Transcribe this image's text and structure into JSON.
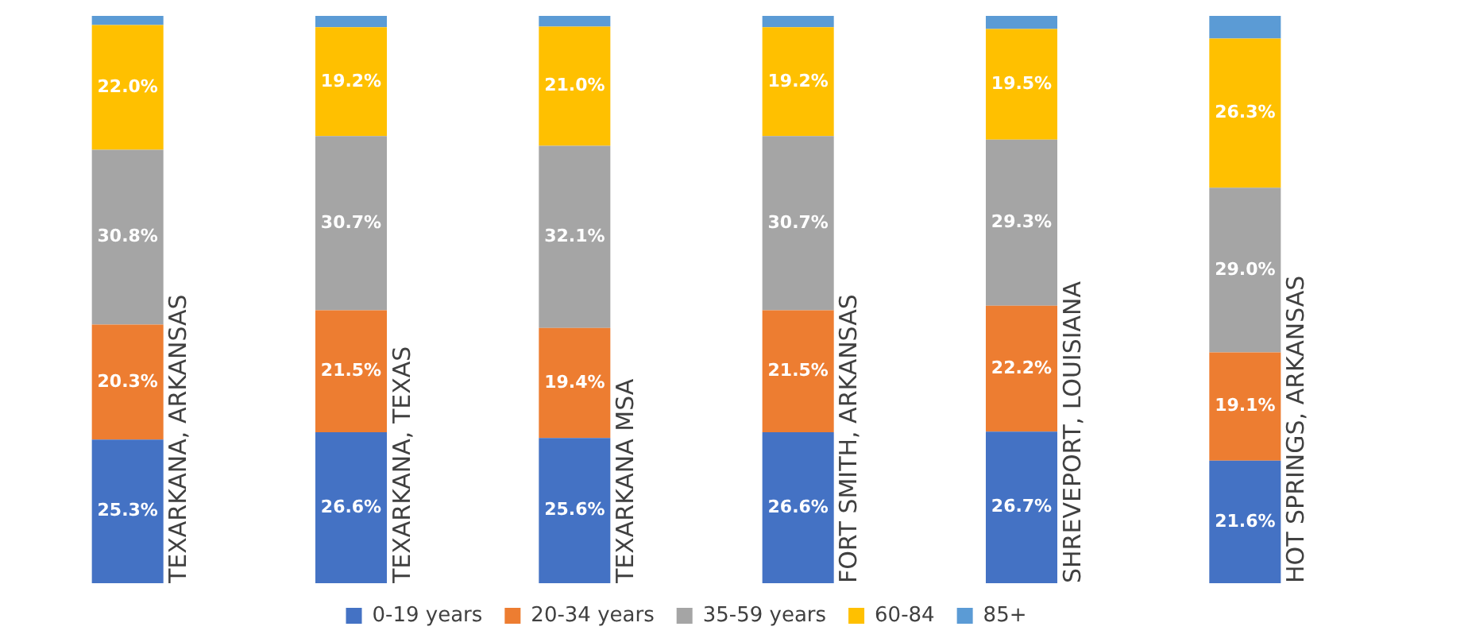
{
  "chart_data": {
    "type": "bar",
    "stacked": true,
    "categories": [
      "TEXARKANA, ARKANSAS",
      "TEXARKANA, TEXAS",
      "TEXARKANA MSA",
      "FORT SMITH, ARKANSAS",
      "SHREVEPORT, LOUISIANA",
      "HOT SPRINGS, ARKANSAS"
    ],
    "ylim": [
      0,
      100
    ],
    "tick_labels": false,
    "grid": false,
    "legend": "bottom",
    "series": [
      {
        "name": "0-19 years",
        "color": "#4472c4",
        "values": [
          25.3,
          26.6,
          25.6,
          26.6,
          26.7,
          21.6
        ],
        "value_labels": [
          "25.3%",
          "26.6%",
          "25.6%",
          "26.6%",
          "26.7%",
          "21.6%"
        ]
      },
      {
        "name": "20-34 years",
        "color": "#ed7d31",
        "values": [
          20.3,
          21.5,
          19.4,
          21.5,
          22.2,
          19.1
        ],
        "value_labels": [
          "20.3%",
          "21.5%",
          "19.4%",
          "21.5%",
          "22.2%",
          "19.1%"
        ]
      },
      {
        "name": "35-59 years",
        "color": "#a5a5a5",
        "values": [
          30.8,
          30.7,
          32.1,
          30.7,
          29.3,
          29.0
        ],
        "value_labels": [
          "30.8%",
          "30.7%",
          "32.1%",
          "30.7%",
          "29.3%",
          "29.0%"
        ]
      },
      {
        "name": "60-84",
        "color": "#ffc000",
        "values": [
          22.0,
          19.2,
          21.0,
          19.2,
          19.5,
          26.3
        ],
        "value_labels": [
          "22.0%",
          "19.2%",
          "21.0%",
          "19.2%",
          "19.5%",
          "26.3%"
        ]
      },
      {
        "name": "85+",
        "color": "#5b9bd5",
        "values": [
          1.6,
          2.0,
          1.9,
          2.0,
          2.3,
          4.0
        ],
        "value_labels": [
          null,
          null,
          null,
          null,
          null,
          null
        ]
      }
    ]
  }
}
